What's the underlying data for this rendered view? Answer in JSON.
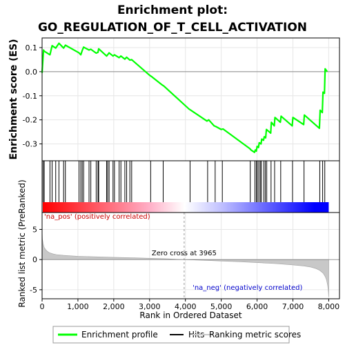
{
  "title_line1": "Enrichment plot:",
  "title_line2": "GO_REGULATION_OF_T_CELL_ACTIVATION",
  "chart_data": {
    "type": "line",
    "xlabel": "Rank in Ordered Dataset",
    "xlim": [
      0,
      8300
    ],
    "x_ticks": [
      0,
      1000,
      2000,
      3000,
      4000,
      5000,
      6000,
      7000,
      8000
    ],
    "x_tick_labels": [
      "0",
      "1,000",
      "2,000",
      "3,000",
      "4,000",
      "5,000",
      "6,000",
      "7,000",
      "8,000"
    ],
    "top_panel": {
      "ylabel": "Enrichment score (ES)",
      "ylim": [
        -0.37,
        0.14
      ],
      "y_ticks": [
        0.1,
        0.0,
        -0.1,
        -0.2,
        -0.3
      ],
      "y_tick_labels": [
        "0.1",
        "0.0",
        "-0.1",
        "-0.2",
        "-0.3"
      ],
      "color": "#00ff00",
      "series_name": "Enrichment profile",
      "x": [
        0,
        40,
        60,
        220,
        280,
        380,
        470,
        600,
        650,
        1030,
        1080,
        1120,
        1160,
        1310,
        1360,
        1510,
        1560,
        1580,
        1800,
        1830,
        1870,
        1980,
        2020,
        2150,
        2200,
        2310,
        2360,
        2450,
        2500,
        3000,
        3050,
        3350,
        3400,
        4100,
        4150,
        4600,
        4650,
        4800,
        4850,
        5000,
        5050,
        5800,
        5830,
        5930,
        5950,
        5980,
        6000,
        6040,
        6060,
        6110,
        6130,
        6180,
        6200,
        6240,
        6260,
        6380,
        6400,
        6480,
        6500,
        6650,
        6670,
        6980,
        7000,
        7300,
        7320,
        7740,
        7760,
        7820,
        7840,
        7880,
        7900,
        7960
      ],
      "y": [
        -0.005,
        0.09,
        0.085,
        0.07,
        0.108,
        0.098,
        0.118,
        0.098,
        0.11,
        0.078,
        0.07,
        0.088,
        0.102,
        0.09,
        0.093,
        0.077,
        0.08,
        0.095,
        0.065,
        0.07,
        0.078,
        0.065,
        0.07,
        0.058,
        0.065,
        0.052,
        0.06,
        0.048,
        0.05,
        -0.015,
        -0.02,
        -0.055,
        -0.06,
        -0.155,
        -0.16,
        -0.205,
        -0.2,
        -0.225,
        -0.228,
        -0.24,
        -0.238,
        -0.32,
        -0.325,
        -0.335,
        -0.325,
        -0.33,
        -0.31,
        -0.315,
        -0.295,
        -0.3,
        -0.28,
        -0.285,
        -0.27,
        -0.275,
        -0.24,
        -0.255,
        -0.21,
        -0.225,
        -0.19,
        -0.21,
        -0.185,
        -0.225,
        -0.19,
        -0.22,
        -0.18,
        -0.235,
        -0.16,
        -0.17,
        -0.085,
        -0.09,
        0.012,
        0.0
      ],
      "hits": [
        30,
        60,
        220,
        280,
        380,
        470,
        600,
        650,
        1030,
        1080,
        1120,
        1160,
        1310,
        1360,
        1510,
        1560,
        1580,
        1800,
        1830,
        1870,
        1980,
        2020,
        2150,
        2200,
        2310,
        2360,
        2450,
        2500,
        3030,
        3380,
        4130,
        4620,
        4830,
        5030,
        5810,
        5940,
        5980,
        6010,
        6050,
        6090,
        6120,
        6190,
        6230,
        6270,
        6390,
        6490,
        6660,
        6990,
        7310,
        7750,
        7830,
        7890
      ]
    },
    "bottom_panel": {
      "ylabel": "Ranked list metric (PreRanked)",
      "ylim": [
        -6.5,
        7.8
      ],
      "y_ticks": [
        5,
        0,
        -5
      ],
      "y_tick_labels": [
        "5",
        "0",
        "-5"
      ],
      "zero_cross": 3965,
      "zero_cross_label": "Zero cross at 3965",
      "pos_label": "'na_pos' (positively correlated)",
      "neg_label": "'na_neg' (negatively correlated)",
      "series_name": "Ranking metric scores",
      "color": "#c8c8c8",
      "x": [
        0,
        10,
        30,
        60,
        100,
        150,
        200,
        300,
        400,
        600,
        800,
        1000,
        1500,
        2000,
        2500,
        3000,
        3500,
        3965,
        4500,
        5000,
        5500,
        6000,
        6500,
        7000,
        7300,
        7500,
        7650,
        7750,
        7850,
        7900,
        7940,
        7970,
        7990,
        8000
      ],
      "y": [
        4.8,
        3.4,
        2.6,
        2.0,
        1.65,
        1.35,
        1.15,
        0.95,
        0.82,
        0.7,
        0.62,
        0.55,
        0.46,
        0.38,
        0.3,
        0.22,
        0.12,
        0.0,
        -0.12,
        -0.24,
        -0.36,
        -0.5,
        -0.66,
        -0.88,
        -1.05,
        -1.25,
        -1.5,
        -1.8,
        -2.3,
        -2.8,
        -3.4,
        -4.3,
        -5.3,
        -6.2
      ]
    },
    "ranking_bar": {
      "stops": [
        {
          "x": 0,
          "color": "#ff0000"
        },
        {
          "x": 3000,
          "color": "#ffb0c8"
        },
        {
          "x": 3965,
          "color": "#ffffff"
        },
        {
          "x": 5000,
          "color": "#c0c0ff"
        },
        {
          "x": 7600,
          "color": "#0000ff"
        },
        {
          "x": 8000,
          "color": "#0000ff"
        }
      ]
    },
    "legend": [
      {
        "label": "Enrichment profile",
        "color": "#00ff00"
      },
      {
        "label": "Hits",
        "color": "#000000"
      },
      {
        "label": "Ranking metric scores",
        "color": "#c8c8c8"
      }
    ]
  }
}
